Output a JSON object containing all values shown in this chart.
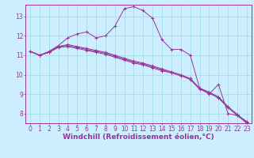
{
  "background_color": "#cceeff",
  "grid_color": "#99dddd",
  "line_color": "#993399",
  "xlabel": "Windchill (Refroidissement éolien,°C)",
  "xlabel_fontsize": 6.5,
  "tick_fontsize": 5.5,
  "xlim": [
    -0.5,
    23.5
  ],
  "ylim": [
    7.5,
    13.6
  ],
  "yticks": [
    8,
    9,
    10,
    11,
    12,
    13
  ],
  "xticks": [
    0,
    1,
    2,
    3,
    4,
    5,
    6,
    7,
    8,
    9,
    10,
    11,
    12,
    13,
    14,
    15,
    16,
    17,
    18,
    19,
    20,
    21,
    22,
    23
  ],
  "series": [
    [
      11.2,
      11.0,
      11.2,
      11.5,
      11.9,
      12.1,
      12.2,
      11.9,
      12.0,
      12.5,
      13.4,
      13.5,
      13.3,
      12.9,
      11.8,
      11.3,
      11.3,
      11.0,
      9.3,
      9.0,
      9.5,
      8.0,
      7.9,
      7.6
    ],
    [
      11.2,
      11.0,
      11.15,
      11.4,
      11.45,
      11.35,
      11.25,
      11.15,
      11.05,
      10.9,
      10.75,
      10.6,
      10.5,
      10.35,
      10.2,
      10.1,
      9.95,
      9.8,
      9.3,
      9.1,
      8.85,
      8.35,
      7.95,
      7.55
    ],
    [
      11.2,
      11.0,
      11.15,
      11.45,
      11.5,
      11.4,
      11.3,
      11.2,
      11.1,
      10.95,
      10.8,
      10.65,
      10.55,
      10.4,
      10.25,
      10.1,
      9.95,
      9.75,
      9.25,
      9.05,
      8.8,
      8.3,
      7.9,
      7.5
    ],
    [
      11.2,
      11.0,
      11.15,
      11.45,
      11.55,
      11.45,
      11.35,
      11.25,
      11.15,
      11.0,
      10.85,
      10.7,
      10.6,
      10.45,
      10.3,
      10.15,
      10.0,
      9.8,
      9.3,
      9.1,
      8.85,
      8.35,
      7.95,
      7.55
    ]
  ]
}
